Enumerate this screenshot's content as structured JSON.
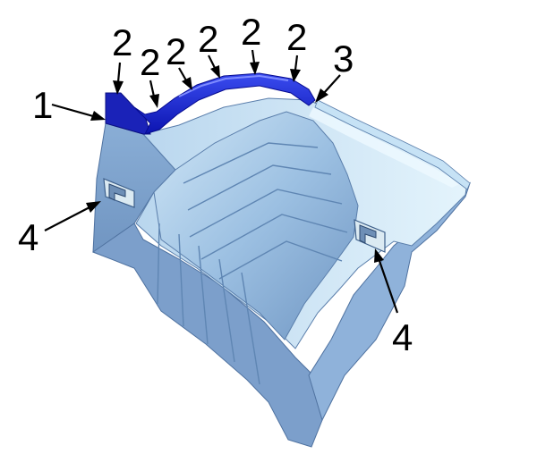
{
  "callouts": [
    {
      "id": "c1",
      "label": "1"
    },
    {
      "id": "c2a",
      "label": "2"
    },
    {
      "id": "c2b",
      "label": "2"
    },
    {
      "id": "c2c",
      "label": "2"
    },
    {
      "id": "c2d",
      "label": "2"
    },
    {
      "id": "c2e",
      "label": "2"
    },
    {
      "id": "c2f",
      "label": "2"
    },
    {
      "id": "c3",
      "label": "3"
    },
    {
      "id": "c4a",
      "label": "4"
    },
    {
      "id": "c4b",
      "label": "4"
    }
  ],
  "colors": {
    "shield_body": "#8fb4dc",
    "shield_light": "#d9eefa",
    "shield_dark": "#5f86b3",
    "seal_strip": "#1a2bd6",
    "seal_strip_dark": "#0a0fa0",
    "clip": "#e8f2f6"
  }
}
